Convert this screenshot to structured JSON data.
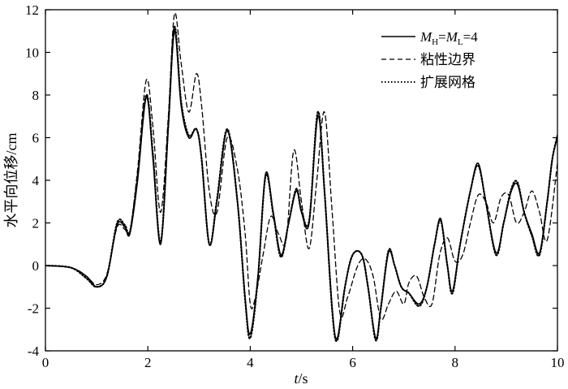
{
  "chart_data": {
    "type": "line",
    "title": "",
    "xlabel_italic": "t",
    "xlabel_unit": "/s",
    "ylabel": "水平向位移/cm",
    "xlim": [
      0,
      10
    ],
    "ylim": [
      -4,
      12
    ],
    "x_ticks": [
      0,
      2,
      4,
      6,
      8,
      10
    ],
    "y_ticks": [
      -4,
      -2,
      0,
      2,
      4,
      6,
      8,
      10,
      12
    ],
    "legend_position": "top-right",
    "legend": [
      {
        "main": "M",
        "sub": "H",
        "eq": "=",
        "main2": "M",
        "sub2": "L",
        "tail": "=4"
      },
      {
        "text": "粘性边界"
      },
      {
        "text": "扩展网格"
      }
    ],
    "series": [
      {
        "name": "MH=ML=4",
        "style": "solid",
        "x": [
          0,
          0.5,
          0.8,
          1.0,
          1.2,
          1.4,
          1.55,
          1.65,
          1.8,
          1.97,
          2.1,
          2.25,
          2.4,
          2.52,
          2.65,
          2.8,
          2.95,
          3.05,
          3.2,
          3.35,
          3.55,
          3.75,
          3.9,
          4.0,
          4.15,
          4.3,
          4.45,
          4.6,
          4.75,
          4.9,
          5.0,
          5.15,
          5.32,
          5.45,
          5.6,
          5.7,
          5.85,
          6.0,
          6.18,
          6.3,
          6.45,
          6.55,
          6.7,
          6.82,
          6.95,
          7.1,
          7.3,
          7.45,
          7.6,
          7.72,
          7.85,
          7.95,
          8.1,
          8.3,
          8.45,
          8.6,
          8.8,
          8.95,
          9.1,
          9.22,
          9.35,
          9.5,
          9.65,
          9.8,
          9.9,
          10.0
        ],
        "y": [
          0,
          -0.1,
          -0.5,
          -1.0,
          -0.5,
          1.9,
          1.8,
          1.5,
          4.0,
          7.9,
          5.0,
          1.0,
          6.5,
          11.0,
          7.5,
          6.0,
          6.4,
          5.0,
          1.0,
          3.0,
          6.3,
          3.0,
          -1.5,
          -3.2,
          -0.5,
          4.3,
          2.5,
          0.5,
          2.0,
          3.5,
          2.5,
          2.0,
          7.0,
          3.5,
          -2.0,
          -3.4,
          -1.0,
          0.5,
          0.5,
          -1.0,
          -3.4,
          -2.0,
          0.6,
          0.0,
          -1.0,
          -1.3,
          -1.8,
          -1.0,
          1.0,
          2.2,
          0.0,
          -1.2,
          1.0,
          3.5,
          4.8,
          3.0,
          0.6,
          2.0,
          3.5,
          3.8,
          2.5,
          1.5,
          0.6,
          3.0,
          5.0,
          6.0
        ]
      },
      {
        "name": "粘性边界",
        "style": "dashed",
        "x": [
          0,
          0.5,
          0.8,
          1.0,
          1.2,
          1.4,
          1.55,
          1.65,
          1.8,
          1.97,
          2.1,
          2.25,
          2.4,
          2.52,
          2.65,
          2.8,
          2.95,
          3.05,
          3.2,
          3.35,
          3.55,
          3.75,
          3.9,
          4.0,
          4.1,
          4.25,
          4.4,
          4.55,
          4.7,
          4.85,
          5.0,
          5.15,
          5.3,
          5.45,
          5.6,
          5.75,
          5.9,
          6.1,
          6.25,
          6.4,
          6.55,
          6.7,
          6.85,
          7.0,
          7.1,
          7.25,
          7.4,
          7.55,
          7.7,
          7.85,
          8.0,
          8.15,
          8.3,
          8.45,
          8.6,
          8.75,
          8.9,
          9.05,
          9.2,
          9.35,
          9.5,
          9.65,
          9.8,
          10.0
        ],
        "y": [
          0,
          -0.1,
          -0.5,
          -0.9,
          -0.4,
          1.8,
          1.7,
          1.6,
          4.5,
          8.7,
          6.5,
          2.5,
          7.0,
          11.8,
          9.5,
          7.2,
          9.0,
          7.5,
          3.5,
          2.5,
          6.0,
          4.5,
          1.5,
          -1.8,
          -1.5,
          0.5,
          2.3,
          1.5,
          1.2,
          5.4,
          3.0,
          0.8,
          4.0,
          7.2,
          2.5,
          -2.2,
          -1.5,
          0.0,
          0.3,
          -0.5,
          -2.5,
          -1.8,
          -1.2,
          -1.8,
          -0.8,
          -0.5,
          -1.5,
          -1.8,
          0.5,
          1.3,
          0.2,
          0.5,
          2.0,
          3.3,
          3.0,
          2.0,
          3.2,
          3.3,
          2.0,
          2.5,
          3.5,
          2.5,
          1.2,
          4.8
        ]
      },
      {
        "name": "扩展网格",
        "style": "dotted",
        "x": [
          0,
          0.5,
          0.8,
          1.0,
          1.2,
          1.4,
          1.55,
          1.65,
          1.8,
          1.97,
          2.1,
          2.25,
          2.4,
          2.52,
          2.65,
          2.8,
          2.95,
          3.05,
          3.2,
          3.35,
          3.55,
          3.75,
          3.9,
          4.0,
          4.15,
          4.3,
          4.45,
          4.6,
          4.75,
          4.9,
          5.0,
          5.15,
          5.32,
          5.45,
          5.6,
          5.7,
          5.85,
          6.0,
          6.18,
          6.3,
          6.45,
          6.55,
          6.7,
          6.82,
          6.95,
          7.1,
          7.3,
          7.45,
          7.6,
          7.72,
          7.85,
          7.95,
          8.1,
          8.3,
          8.45,
          8.6,
          8.8,
          8.95,
          9.1,
          9.22,
          9.35,
          9.5,
          9.65,
          9.8,
          9.9,
          10.0
        ],
        "y": [
          0,
          -0.1,
          -0.6,
          -1.0,
          -0.5,
          2.0,
          1.9,
          1.6,
          4.2,
          8.0,
          5.2,
          1.1,
          6.6,
          11.2,
          7.7,
          6.1,
          6.4,
          5.0,
          1.0,
          3.1,
          6.4,
          3.0,
          -1.6,
          -3.4,
          -0.6,
          4.2,
          2.4,
          0.4,
          2.0,
          3.6,
          2.6,
          2.1,
          7.2,
          3.5,
          -2.1,
          -3.5,
          -1.0,
          0.5,
          0.5,
          -1.0,
          -3.5,
          -2.0,
          0.7,
          0.0,
          -1.0,
          -1.3,
          -1.9,
          -1.0,
          1.0,
          2.1,
          0.0,
          -1.3,
          1.0,
          3.5,
          4.7,
          3.0,
          0.5,
          2.0,
          3.6,
          3.9,
          2.5,
          1.4,
          0.5,
          3.0,
          5.0,
          6.1
        ]
      }
    ]
  }
}
